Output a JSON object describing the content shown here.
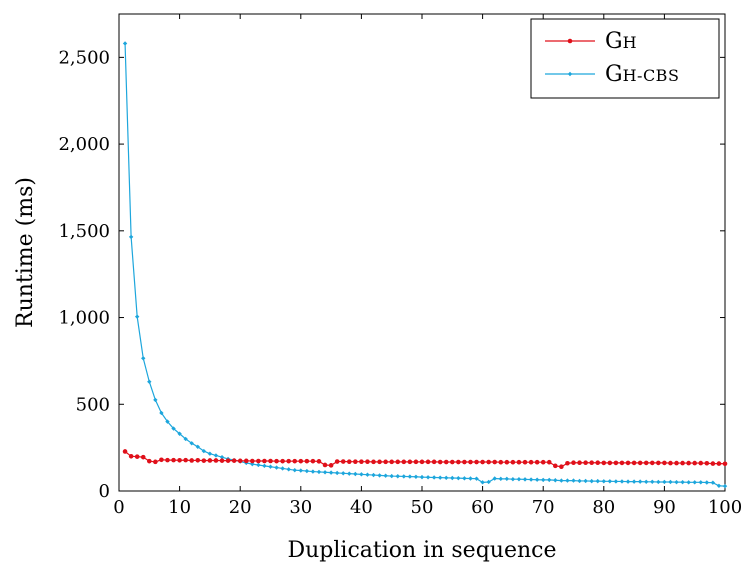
{
  "chart_data": {
    "type": "line",
    "title": "",
    "xlabel": "Duplication in sequence",
    "ylabel": "Runtime (ms)",
    "xlim": [
      0,
      100
    ],
    "ylim": [
      0,
      2750
    ],
    "x_ticks": [
      0,
      10,
      20,
      30,
      40,
      50,
      60,
      70,
      80,
      90,
      100
    ],
    "x_tick_labels": [
      "0",
      "10",
      "20",
      "30",
      "40",
      "50",
      "60",
      "70",
      "80",
      "90",
      "100"
    ],
    "y_ticks": [
      0,
      500,
      1000,
      1500,
      2000,
      2500
    ],
    "y_tick_labels": [
      "0",
      "500",
      "1,000",
      "1,500",
      "2,000",
      "2,500"
    ],
    "grid": false,
    "legend_position": "top-right",
    "x": [
      1,
      2,
      3,
      4,
      5,
      6,
      7,
      8,
      9,
      10,
      11,
      12,
      13,
      14,
      15,
      16,
      17,
      18,
      19,
      20,
      21,
      22,
      23,
      24,
      25,
      26,
      27,
      28,
      29,
      30,
      31,
      32,
      33,
      34,
      35,
      36,
      37,
      38,
      39,
      40,
      41,
      42,
      43,
      44,
      45,
      46,
      47,
      48,
      49,
      50,
      51,
      52,
      53,
      54,
      55,
      56,
      57,
      58,
      59,
      60,
      61,
      62,
      63,
      64,
      65,
      66,
      67,
      68,
      69,
      70,
      71,
      72,
      73,
      74,
      75,
      76,
      77,
      78,
      79,
      80,
      81,
      82,
      83,
      84,
      85,
      86,
      87,
      88,
      89,
      90,
      91,
      92,
      93,
      94,
      95,
      96,
      97,
      98,
      99,
      100
    ],
    "series": [
      {
        "name": "GH",
        "name_main": "G",
        "name_small": "H",
        "color": "#e0101a",
        "marker": "circle",
        "values": [
          228,
          200,
          198,
          195,
          172,
          168,
          180,
          178,
          178,
          177,
          178,
          176,
          177,
          175,
          176,
          176,
          175,
          175,
          175,
          174,
          174,
          173,
          173,
          173,
          173,
          172,
          172,
          172,
          172,
          172,
          172,
          172,
          171,
          150,
          148,
          170,
          170,
          169,
          169,
          169,
          169,
          168,
          168,
          168,
          168,
          168,
          168,
          168,
          168,
          168,
          168,
          168,
          167,
          167,
          167,
          167,
          167,
          167,
          167,
          167,
          167,
          167,
          166,
          166,
          166,
          166,
          166,
          166,
          166,
          166,
          166,
          145,
          140,
          160,
          163,
          163,
          163,
          163,
          163,
          162,
          162,
          162,
          162,
          162,
          162,
          162,
          162,
          162,
          162,
          162,
          161,
          161,
          161,
          161,
          161,
          161,
          160,
          158,
          158,
          157
        ]
      },
      {
        "name": "GH-CBS",
        "name_main": "G",
        "name_small": "H-CBS",
        "color": "#1da6dc",
        "marker": "diamond",
        "values": [
          2580,
          1465,
          1005,
          765,
          630,
          525,
          450,
          400,
          360,
          330,
          300,
          275,
          255,
          230,
          215,
          205,
          195,
          185,
          178,
          170,
          162,
          155,
          150,
          145,
          140,
          135,
          130,
          125,
          120,
          118,
          115,
          112,
          110,
          108,
          106,
          104,
          102,
          100,
          98,
          96,
          94,
          92,
          90,
          88,
          86,
          85,
          84,
          83,
          82,
          80,
          79,
          78,
          77,
          76,
          75,
          74,
          73,
          72,
          71,
          50,
          52,
          72,
          70,
          70,
          68,
          68,
          67,
          66,
          65,
          64,
          64,
          62,
          60,
          60,
          60,
          58,
          58,
          57,
          57,
          56,
          56,
          55,
          55,
          54,
          54,
          54,
          53,
          53,
          52,
          52,
          52,
          51,
          51,
          50,
          50,
          50,
          49,
          48,
          30,
          28
        ]
      }
    ]
  }
}
